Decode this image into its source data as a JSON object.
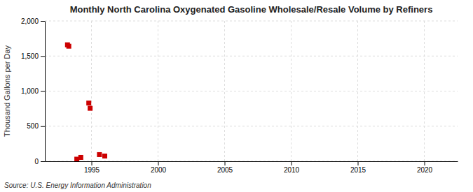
{
  "chart_data": {
    "type": "scatter",
    "title": "Monthly North Carolina Oxygenated Gasoline Wholesale/Resale Volume by Refiners",
    "y_label": "Thousand Gallons per Day",
    "annotations": [
      "Source: U.S. Energy Information Administration"
    ],
    "x": [
      1993.2,
      1993.3,
      1993.9,
      1994.2,
      1994.8,
      1994.9,
      1995.6,
      1996.0
    ],
    "values": [
      1660,
      1640,
      30,
      55,
      830,
      755,
      95,
      75
    ],
    "color": "#cc0000",
    "marker": "square",
    "xlim": [
      1991.5,
      2022.5
    ],
    "xticks": [
      1995,
      2000,
      2005,
      2010,
      2015,
      2020
    ],
    "ylim": [
      0,
      2000
    ],
    "yticks": [
      0,
      500,
      {
        "value": 1000,
        "label": "1,000"
      },
      {
        "value": 1500,
        "label": "1,500"
      },
      {
        "value": 2000,
        "label": "2,000"
      }
    ],
    "grid": true
  }
}
